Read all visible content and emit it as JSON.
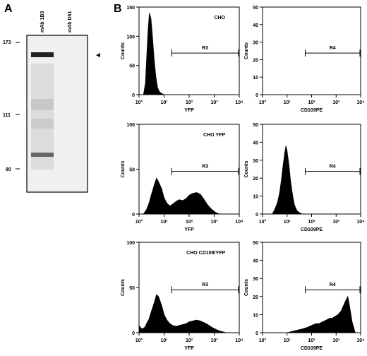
{
  "panel_a": {
    "letter": "A",
    "lanes": [
      "mAb 1B3",
      "mAb D51"
    ],
    "mw_markers": [
      "173",
      "111",
      "80"
    ],
    "arrow": "◄"
  },
  "panel_b": {
    "letter": "B"
  },
  "chart_data": [
    {
      "type": "area",
      "title": "CHO",
      "xlabel": "YFP",
      "ylabel": "Counts",
      "x_scale": "log",
      "xlim": [
        1,
        10000
      ],
      "ylim": [
        0,
        150
      ],
      "x_ticks": [
        "10°",
        "10¹",
        "10²",
        "10³",
        "10⁴"
      ],
      "y_ticks": [
        "0",
        "50",
        "100",
        "150"
      ],
      "gate": {
        "name": "R3",
        "from": 20,
        "to": 10000
      },
      "histogram": {
        "x": [
          1.5,
          1.8,
          2.0,
          2.3,
          2.6,
          3.0,
          3.5,
          4.0,
          4.7,
          5.5,
          6.5,
          8,
          10
        ],
        "y": [
          0,
          20,
          60,
          110,
          140,
          130,
          95,
          60,
          30,
          12,
          5,
          2,
          0
        ]
      }
    },
    {
      "type": "area",
      "title": "",
      "xlabel": "CD109PE",
      "ylabel": "Counts",
      "x_scale": "log",
      "xlim": [
        1,
        10000
      ],
      "ylim": [
        0,
        50
      ],
      "x_ticks": [
        "10°",
        "10¹",
        "10²",
        "10³",
        "10⁴"
      ],
      "y_ticks": [
        "0",
        "10",
        "20",
        "30",
        "40",
        "50"
      ],
      "gate": {
        "name": "R4",
        "from": 55,
        "to": 10000
      },
      "histogram": {
        "x": [],
        "y": []
      }
    },
    {
      "type": "area",
      "title": "CHO YFP",
      "xlabel": "YFP",
      "ylabel": "Counts",
      "x_scale": "log",
      "xlim": [
        1,
        10000
      ],
      "ylim": [
        0,
        100
      ],
      "x_ticks": [
        "10°",
        "10¹",
        "10²",
        "10³",
        "10⁴"
      ],
      "y_ticks": [
        "0",
        "50",
        "100"
      ],
      "gate": {
        "name": "R3",
        "from": 20,
        "to": 10000
      },
      "histogram": {
        "x": [
          1.5,
          2,
          2.5,
          3,
          4,
          5,
          6,
          8,
          10,
          13,
          17,
          22,
          30,
          40,
          55,
          75,
          100,
          140,
          200,
          280,
          400,
          550,
          800,
          1100,
          1600
        ],
        "y": [
          0,
          5,
          12,
          20,
          32,
          40,
          36,
          28,
          18,
          12,
          9,
          11,
          14,
          16,
          15,
          17,
          21,
          23,
          24,
          22,
          16,
          10,
          5,
          2,
          0
        ]
      }
    },
    {
      "type": "area",
      "title": "",
      "xlabel": "CD109PE",
      "ylabel": "Counts",
      "x_scale": "log",
      "xlim": [
        1,
        10000
      ],
      "ylim": [
        0,
        50
      ],
      "x_ticks": [
        "10°",
        "10¹",
        "10²",
        "10³",
        "10⁴"
      ],
      "y_ticks": [
        "0",
        "10",
        "20",
        "30",
        "40",
        "50"
      ],
      "gate": {
        "name": "R4",
        "from": 55,
        "to": 10000
      },
      "histogram": {
        "x": [
          2.5,
          3,
          4,
          5,
          6,
          7,
          8,
          9,
          10,
          12,
          14,
          17,
          20,
          25,
          30,
          40
        ],
        "y": [
          0,
          2,
          6,
          12,
          20,
          28,
          34,
          38,
          35,
          27,
          18,
          10,
          5,
          2,
          1,
          0
        ]
      }
    },
    {
      "type": "area",
      "title": "CHO CD109/YFP",
      "xlabel": "YFP",
      "ylabel": "Counts",
      "x_scale": "log",
      "xlim": [
        1,
        10000
      ],
      "ylim": [
        0,
        100
      ],
      "x_ticks": [
        "10°",
        "10¹",
        "10²",
        "10³",
        "10⁴"
      ],
      "y_ticks": [
        "0",
        "50",
        "100"
      ],
      "gate": {
        "name": "R3",
        "from": 20,
        "to": 10000
      },
      "histogram": {
        "x": [
          1,
          1.3,
          1.7,
          2,
          2.5,
          3,
          4,
          5,
          6,
          8,
          10,
          13,
          17,
          22,
          30,
          40,
          55,
          75,
          100,
          140,
          200,
          280,
          400,
          550,
          800,
          1100,
          1600,
          2200,
          3000
        ],
        "y": [
          8,
          4,
          6,
          10,
          15,
          22,
          33,
          42,
          40,
          30,
          20,
          14,
          10,
          8,
          7,
          8,
          9,
          10,
          12,
          13,
          14,
          13,
          11,
          9,
          6,
          4,
          2,
          1,
          0
        ]
      }
    },
    {
      "type": "area",
      "title": "",
      "xlabel": "CD109PE",
      "ylabel": "Counts",
      "x_scale": "log",
      "xlim": [
        1,
        10000
      ],
      "ylim": [
        0,
        50
      ],
      "x_ticks": [
        "10°",
        "10¹",
        "10²",
        "10³",
        "10⁴"
      ],
      "y_ticks": [
        "0",
        "10",
        "20",
        "30",
        "40",
        "50"
      ],
      "gate": {
        "name": "R4",
        "from": 55,
        "to": 10000
      },
      "histogram": {
        "x": [
          10,
          20,
          40,
          70,
          100,
          150,
          200,
          280,
          400,
          550,
          700,
          900,
          1200,
          1600,
          2000,
          2500,
          3000,
          3500,
          4500,
          6000
        ],
        "y": [
          0,
          1,
          2,
          3,
          4,
          5,
          5,
          6,
          7,
          8,
          8,
          9,
          10,
          12,
          15,
          18,
          20,
          15,
          6,
          0
        ]
      }
    }
  ]
}
